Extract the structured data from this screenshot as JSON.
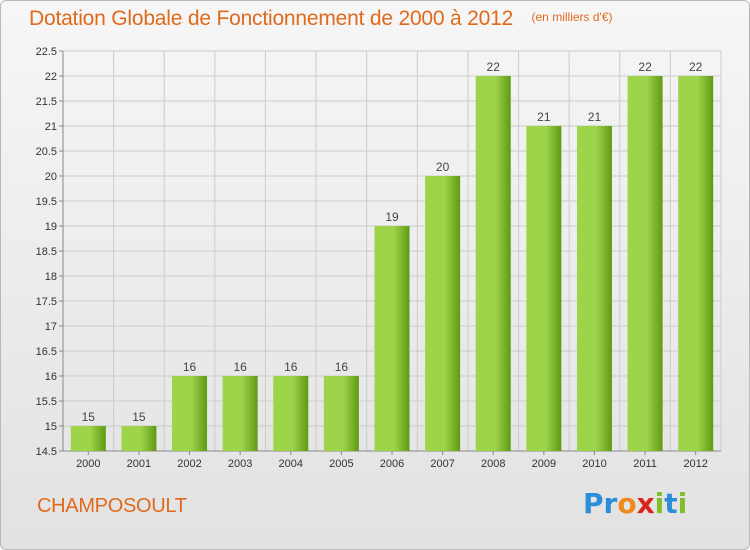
{
  "header": {
    "title": "Dotation Globale de Fonctionnement de 2000 à 2012",
    "unit": "(en milliers d'€)"
  },
  "footer": {
    "commune": "CHAMPOSOULT",
    "logo_letters": [
      {
        "ch": "P",
        "color": "#2a8fd8"
      },
      {
        "ch": "r",
        "color": "#2a8fd8"
      },
      {
        "ch": "o",
        "color": "#f08a1c"
      },
      {
        "ch": "x",
        "color": "#d9261c"
      },
      {
        "ch": "i",
        "color": "#7fbf2a"
      },
      {
        "ch": "t",
        "color": "#2a8fd8"
      },
      {
        "ch": "i",
        "color": "#7fbf2a"
      }
    ]
  },
  "colors": {
    "accent": "#e06a1c",
    "bar_light": "#9ed44a",
    "bar_dark": "#5f9a14",
    "grid": "#cccccc"
  },
  "chart_data": {
    "type": "bar",
    "categories": [
      "2000",
      "2001",
      "2002",
      "2003",
      "2004",
      "2005",
      "2006",
      "2007",
      "2008",
      "2009",
      "2010",
      "2011",
      "2012"
    ],
    "values": [
      15,
      15,
      16,
      16,
      16,
      16,
      19,
      20,
      22,
      21,
      21,
      22,
      22
    ],
    "ylim": [
      14.5,
      22.5
    ],
    "yticks": [
      "14.5",
      "15",
      "15.5",
      "16",
      "16.5",
      "17",
      "17.5",
      "18",
      "18.5",
      "19",
      "19.5",
      "20",
      "20.5",
      "21",
      "21.5",
      "22",
      "22.5"
    ],
    "grid": true,
    "data_labels": true
  }
}
